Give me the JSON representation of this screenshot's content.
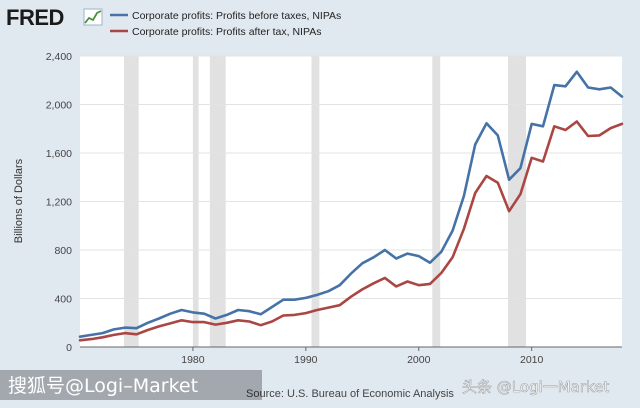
{
  "brand": {
    "name": "FRED"
  },
  "watermarks": {
    "left": "搜狐号@Logi–Market",
    "right": "头条 @Logi一Market"
  },
  "colors": {
    "series1": "#4572a7",
    "series2": "#aa4643",
    "recession": "#e1e1e1",
    "background": "#e1e9f0",
    "plot_bg": "#ffffff",
    "grid": "#e3e3e3"
  },
  "chart_data": {
    "type": "line",
    "title": "",
    "xlabel": "",
    "ylabel": "Billions of Dollars",
    "source": "Source: U.S. Bureau of Economic Analysis",
    "xlim": [
      1970,
      2018
    ],
    "ylim": [
      0,
      2400
    ],
    "xticks": [
      1980,
      1990,
      2000,
      2010
    ],
    "yticks": [
      0,
      400,
      800,
      1200,
      1600,
      2000,
      2400
    ],
    "ytick_labels": [
      "0",
      "400",
      "800",
      "1,200",
      "1,600",
      "2,000",
      "2,400"
    ],
    "grid": true,
    "legend_position": "top",
    "recessions": [
      [
        1973.9,
        1975.2
      ],
      [
        1980.0,
        1980.5
      ],
      [
        1981.5,
        1982.9
      ],
      [
        1990.5,
        1991.2
      ],
      [
        2001.2,
        2001.9
      ],
      [
        2007.9,
        2009.5
      ]
    ],
    "x": [
      1970,
      1971,
      1972,
      1973,
      1974,
      1975,
      1976,
      1977,
      1978,
      1979,
      1980,
      1981,
      1982,
      1983,
      1984,
      1985,
      1986,
      1987,
      1988,
      1989,
      1990,
      1991,
      1992,
      1993,
      1994,
      1995,
      1996,
      1997,
      1998,
      1999,
      2000,
      2001,
      2002,
      2003,
      2004,
      2005,
      2006,
      2007,
      2008,
      2009,
      2010,
      2011,
      2012,
      2013,
      2014,
      2015,
      2016,
      2017,
      2018
    ],
    "series": [
      {
        "name": "Corporate profits: Profits before taxes, NIPAs",
        "values": [
          85,
          100,
          115,
          145,
          160,
          155,
          200,
          235,
          275,
          305,
          285,
          275,
          235,
          265,
          305,
          295,
          270,
          330,
          390,
          390,
          405,
          430,
          460,
          510,
          605,
          690,
          740,
          800,
          730,
          770,
          750,
          695,
          785,
          960,
          1245,
          1670,
          1845,
          1745,
          1380,
          1475,
          1840,
          1820,
          2160,
          2150,
          2270,
          2140,
          2125,
          2140,
          2065
        ]
      },
      {
        "name": "Corporate profits: Profits after tax, NIPAs",
        "values": [
          55,
          65,
          80,
          100,
          115,
          105,
          140,
          170,
          195,
          220,
          205,
          205,
          185,
          200,
          220,
          210,
          180,
          210,
          260,
          265,
          280,
          305,
          325,
          345,
          415,
          475,
          525,
          570,
          500,
          540,
          510,
          520,
          610,
          740,
          975,
          1270,
          1410,
          1355,
          1120,
          1260,
          1560,
          1530,
          1820,
          1790,
          1860,
          1740,
          1745,
          1805,
          1840
        ]
      }
    ]
  }
}
